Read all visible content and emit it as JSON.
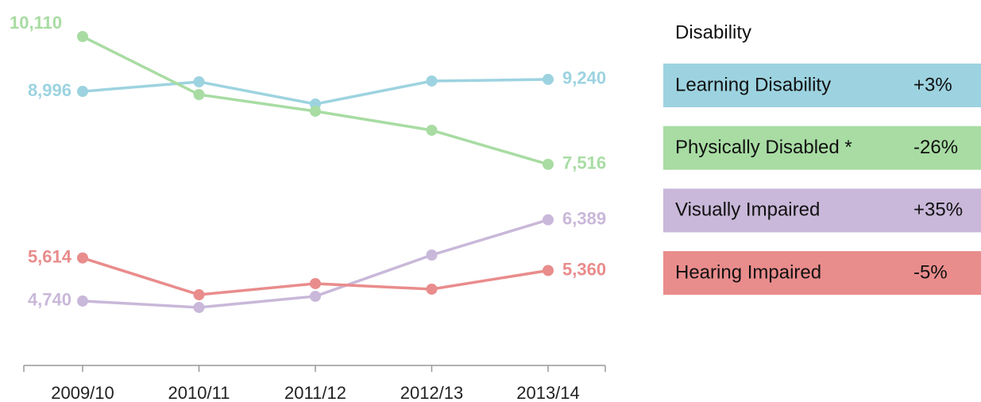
{
  "chart_data": {
    "type": "line",
    "categories": [
      "2009/10",
      "2010/11",
      "2011/12",
      "2012/13",
      "2013/14"
    ],
    "ylim": [
      3432,
      10852
    ],
    "legend_title": "Disability",
    "legend_position": "right",
    "series": [
      {
        "name": "Learning Disability",
        "color": "#9dd3e0",
        "values": [
          8996,
          9191,
          8739,
          9207,
          9240
        ],
        "value_labels": [
          "8,996",
          null,
          null,
          null,
          "9,240"
        ],
        "change": 3,
        "change_label": "+3%"
      },
      {
        "name": "Physically Disabled *",
        "color": "#a8dca3",
        "values": [
          10110,
          8932,
          8594,
          8207,
          7516
        ],
        "value_labels": [
          "10,110",
          null,
          null,
          null,
          "7,516"
        ],
        "change": -26,
        "change_label": "-26%"
      },
      {
        "name": "Visually Impaired",
        "color": "#c9b8d9",
        "values": [
          4740,
          4610,
          4836,
          5674,
          6389
        ],
        "value_labels": [
          "4,740",
          null,
          null,
          null,
          "6,389"
        ],
        "change": 35,
        "change_label": "+35%"
      },
      {
        "name": "Hearing Impaired",
        "color": "#e98c8c",
        "values": [
          5614,
          4868,
          5094,
          4981,
          5360
        ],
        "value_labels": [
          "5,614",
          null,
          null,
          null,
          "5,360"
        ],
        "change": -5,
        "change_label": "-5%"
      }
    ]
  }
}
